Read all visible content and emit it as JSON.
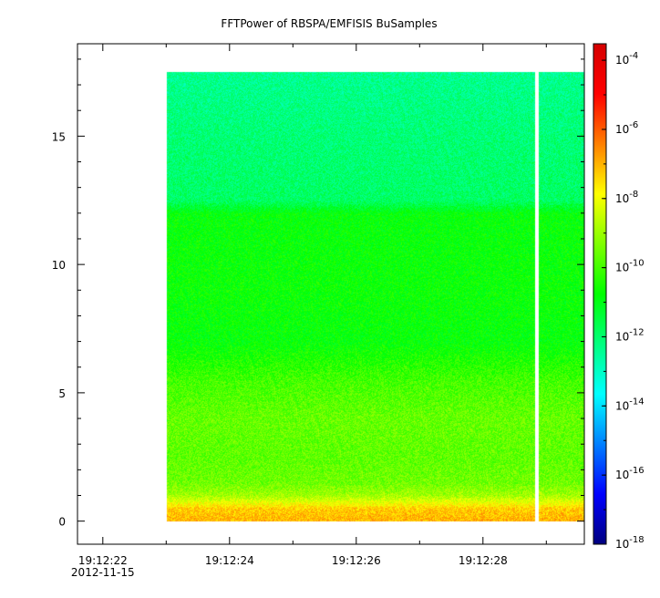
{
  "chart_data": {
    "type": "heatmap",
    "title": "FFTPower of RBSPA/EMFISIS  BuSamples",
    "xlabel": "",
    "ylabel": "",
    "x_ticks": [
      {
        "main": "19:12:22",
        "sub": "2012-11-15"
      },
      {
        "main": "19:12:24"
      },
      {
        "main": "19:12:26"
      },
      {
        "main": "19:12:28"
      }
    ],
    "x_range_seconds": [
      -0.4,
      7.6
    ],
    "data_x_start_seconds": 1.0,
    "gap_seconds": [
      6.82,
      6.88
    ],
    "y_ticks": [
      0,
      5,
      10,
      15
    ],
    "ylim": [
      -0.9,
      18.6
    ],
    "data_y_max": 17.5,
    "colorbar": {
      "scale": "log",
      "range": [
        1e-18,
        0.0003
      ],
      "ticks": [
        {
          "base": "10",
          "exp": "-4",
          "value": -4
        },
        {
          "base": "10",
          "exp": "-6",
          "value": -6
        },
        {
          "base": "10",
          "exp": "-8",
          "value": -8
        },
        {
          "base": "10",
          "exp": "-10",
          "value": -10
        },
        {
          "base": "10",
          "exp": "-12",
          "value": -12
        },
        {
          "base": "10",
          "exp": "-14",
          "value": -14
        },
        {
          "base": "10",
          "exp": "-16",
          "value": -16
        },
        {
          "base": "10",
          "exp": "-18",
          "value": -18
        }
      ],
      "colors": [
        "#00007f",
        "#0000ff",
        "#007fff",
        "#00ffff",
        "#00ff7f",
        "#00ff00",
        "#7fff00",
        "#ffff00",
        "#ff7f00",
        "#ff0000",
        "#d40000"
      ]
    },
    "power_profile_log10": [
      {
        "y": 0.0,
        "value": -7.0
      },
      {
        "y": 0.5,
        "value": -7.3
      },
      {
        "y": 1.0,
        "value": -8.9
      },
      {
        "y": 1.5,
        "value": -9.5
      },
      {
        "y": 2.5,
        "value": -9.7
      },
      {
        "y": 4.0,
        "value": -9.6
      },
      {
        "y": 5.5,
        "value": -10.0
      },
      {
        "y": 7.0,
        "value": -10.8
      },
      {
        "y": 9.0,
        "value": -10.7
      },
      {
        "y": 12.0,
        "value": -10.8
      },
      {
        "y": 12.5,
        "value": -11.9
      },
      {
        "y": 15.0,
        "value": -12.1
      },
      {
        "y": 17.5,
        "value": -12.4
      }
    ]
  }
}
